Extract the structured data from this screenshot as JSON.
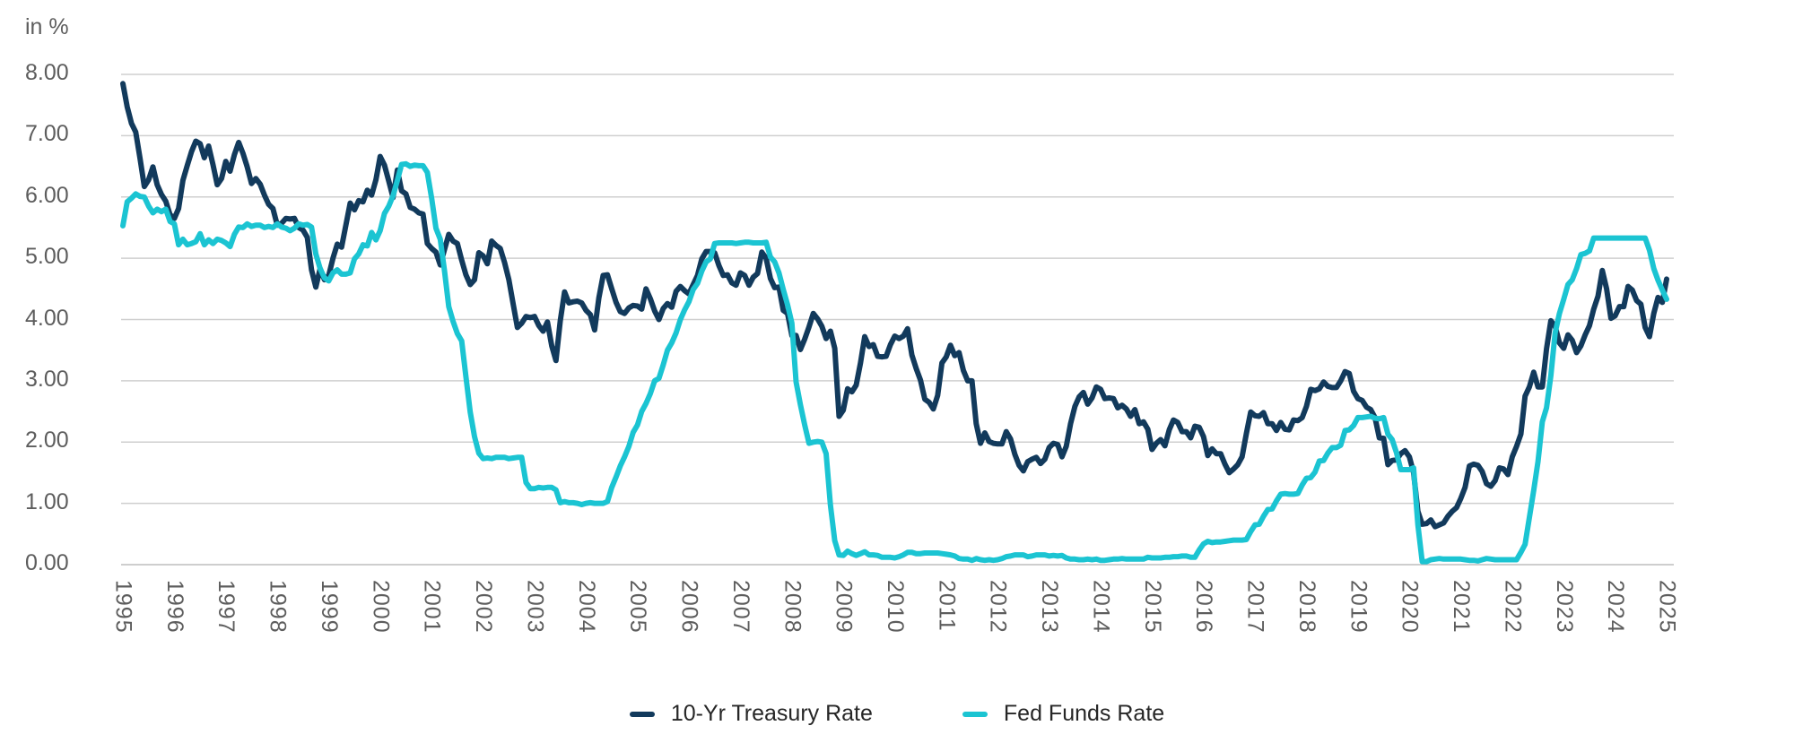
{
  "chart_data": {
    "type": "line",
    "title": "",
    "unit_label": "in %",
    "grid": "horizontal-only",
    "legend_position": "bottom-center",
    "ylim": [
      0,
      8
    ],
    "y_ticks": [
      "8.00",
      "7.00",
      "6.00",
      "5.00",
      "4.00",
      "3.00",
      "2.00",
      "1.00",
      "0.00"
    ],
    "x_ticks": [
      "1995",
      "1996",
      "1997",
      "1998",
      "1999",
      "2000",
      "2001",
      "2002",
      "2003",
      "2004",
      "2005",
      "2006",
      "2007",
      "2008",
      "2009",
      "2010",
      "2011",
      "2012",
      "2013",
      "2014",
      "2015",
      "2016",
      "2017",
      "2018",
      "2019",
      "2020",
      "2021",
      "2022",
      "2023",
      "2024",
      "2025"
    ],
    "x_start": "1995-01",
    "x_end": "2025-01",
    "frequency": "monthly",
    "axis_color": "#5d5d5d",
    "gridline_color": "#cfcfcf",
    "series": [
      {
        "name": "10-Yr Treasury Rate",
        "color": "#123A5C",
        "values": [
          7.85,
          7.47,
          7.2,
          7.06,
          6.63,
          6.17,
          6.28,
          6.49,
          6.2,
          6.04,
          5.93,
          5.71,
          5.65,
          5.81,
          6.27,
          6.51,
          6.74,
          6.91,
          6.87,
          6.64,
          6.83,
          6.53,
          6.2,
          6.3,
          6.58,
          6.42,
          6.69,
          6.89,
          6.71,
          6.49,
          6.22,
          6.3,
          6.21,
          6.03,
          5.88,
          5.81,
          5.54,
          5.57,
          5.65,
          5.64,
          5.65,
          5.5,
          5.46,
          5.34,
          4.81,
          4.53,
          4.83,
          4.65,
          4.72,
          5.0,
          5.23,
          5.18,
          5.54,
          5.9,
          5.79,
          5.94,
          5.92,
          6.11,
          6.03,
          6.28,
          6.66,
          6.52,
          6.26,
          5.99,
          6.44,
          6.1,
          6.05,
          5.83,
          5.8,
          5.74,
          5.72,
          5.24,
          5.16,
          5.1,
          4.89,
          5.14,
          5.39,
          5.28,
          5.24,
          4.97,
          4.73,
          4.57,
          4.65,
          5.09,
          5.04,
          4.91,
          5.28,
          5.21,
          5.16,
          4.93,
          4.65,
          4.26,
          3.87,
          3.94,
          4.05,
          4.03,
          4.05,
          3.9,
          3.81,
          3.96,
          3.57,
          3.33,
          3.98,
          4.45,
          4.27,
          4.29,
          4.3,
          4.27,
          4.15,
          4.08,
          3.83,
          4.35,
          4.72,
          4.73,
          4.5,
          4.28,
          4.13,
          4.1,
          4.19,
          4.23,
          4.22,
          4.17,
          4.5,
          4.34,
          4.14,
          4.0,
          4.18,
          4.26,
          4.2,
          4.46,
          4.54,
          4.47,
          4.42,
          4.57,
          4.72,
          4.99,
          5.11,
          5.11,
          5.09,
          4.88,
          4.72,
          4.73,
          4.6,
          4.56,
          4.76,
          4.72,
          4.56,
          4.69,
          4.75,
          5.1,
          5.0,
          4.67,
          4.52,
          4.53,
          4.15,
          4.1,
          3.74,
          3.74,
          3.51,
          3.68,
          3.88,
          4.1,
          4.01,
          3.89,
          3.69,
          3.81,
          3.53,
          2.42,
          2.52,
          2.87,
          2.82,
          2.93,
          3.29,
          3.72,
          3.56,
          3.59,
          3.4,
          3.39,
          3.4,
          3.59,
          3.73,
          3.69,
          3.73,
          3.85,
          3.42,
          3.2,
          3.01,
          2.7,
          2.65,
          2.54,
          2.76,
          3.29,
          3.39,
          3.58,
          3.41,
          3.46,
          3.17,
          3.0,
          3.0,
          2.3,
          1.98,
          2.15,
          2.01,
          1.98,
          1.97,
          1.97,
          2.17,
          2.05,
          1.8,
          1.62,
          1.53,
          1.68,
          1.72,
          1.75,
          1.65,
          1.72,
          1.91,
          1.98,
          1.96,
          1.76,
          1.93,
          2.3,
          2.58,
          2.74,
          2.81,
          2.62,
          2.72,
          2.9,
          2.86,
          2.71,
          2.72,
          2.71,
          2.56,
          2.6,
          2.54,
          2.42,
          2.53,
          2.3,
          2.33,
          2.21,
          1.88,
          1.98,
          2.04,
          1.94,
          2.2,
          2.36,
          2.32,
          2.17,
          2.17,
          2.07,
          2.26,
          2.24,
          2.09,
          1.78,
          1.89,
          1.81,
          1.81,
          1.64,
          1.5,
          1.56,
          1.63,
          1.76,
          2.14,
          2.49,
          2.43,
          2.42,
          2.48,
          2.3,
          2.3,
          2.19,
          2.32,
          2.21,
          2.2,
          2.36,
          2.35,
          2.4,
          2.58,
          2.86,
          2.84,
          2.87,
          2.98,
          2.91,
          2.89,
          2.89,
          3.0,
          3.15,
          3.12,
          2.83,
          2.71,
          2.68,
          2.57,
          2.53,
          2.4,
          2.07,
          2.06,
          1.63,
          1.7,
          1.71,
          1.81,
          1.86,
          1.76,
          1.5,
          0.87,
          0.66,
          0.67,
          0.73,
          0.62,
          0.65,
          0.68,
          0.79,
          0.87,
          0.93,
          1.08,
          1.26,
          1.61,
          1.64,
          1.62,
          1.52,
          1.32,
          1.28,
          1.37,
          1.58,
          1.56,
          1.47,
          1.76,
          1.93,
          2.13,
          2.75,
          2.9,
          3.14,
          2.9,
          2.9,
          3.52,
          3.98,
          3.89,
          3.62,
          3.53,
          3.75,
          3.66,
          3.46,
          3.57,
          3.75,
          3.9,
          4.17,
          4.38,
          4.8,
          4.5,
          4.02,
          4.06,
          4.21,
          4.21,
          4.54,
          4.48,
          4.31,
          4.25,
          3.87,
          3.72,
          4.1,
          4.36,
          4.28,
          4.66
        ]
      },
      {
        "name": "Fed Funds Rate",
        "color": "#1BC4D2",
        "values": [
          5.53,
          5.92,
          5.98,
          6.05,
          6.01,
          6.0,
          5.85,
          5.74,
          5.8,
          5.76,
          5.8,
          5.6,
          5.56,
          5.22,
          5.31,
          5.22,
          5.24,
          5.27,
          5.4,
          5.22,
          5.3,
          5.24,
          5.31,
          5.29,
          5.25,
          5.19,
          5.39,
          5.51,
          5.5,
          5.56,
          5.52,
          5.54,
          5.54,
          5.5,
          5.52,
          5.5,
          5.56,
          5.51,
          5.49,
          5.45,
          5.49,
          5.56,
          5.54,
          5.55,
          5.51,
          5.07,
          4.83,
          4.68,
          4.63,
          4.76,
          4.81,
          4.74,
          4.74,
          4.76,
          4.99,
          5.07,
          5.22,
          5.2,
          5.42,
          5.3,
          5.45,
          5.73,
          5.85,
          6.02,
          6.27,
          6.53,
          6.54,
          6.5,
          6.52,
          6.51,
          6.51,
          6.4,
          5.98,
          5.49,
          5.31,
          4.8,
          4.21,
          3.97,
          3.77,
          3.65,
          3.07,
          2.49,
          2.09,
          1.82,
          1.73,
          1.74,
          1.73,
          1.75,
          1.75,
          1.75,
          1.73,
          1.74,
          1.75,
          1.75,
          1.34,
          1.24,
          1.24,
          1.26,
          1.25,
          1.26,
          1.26,
          1.22,
          1.01,
          1.03,
          1.01,
          1.01,
          1.0,
          0.98,
          1.0,
          1.01,
          1.0,
          1.0,
          1.0,
          1.03,
          1.26,
          1.43,
          1.61,
          1.76,
          1.93,
          2.16,
          2.28,
          2.5,
          2.63,
          2.79,
          3.0,
          3.04,
          3.26,
          3.5,
          3.62,
          3.78,
          4.0,
          4.16,
          4.29,
          4.49,
          4.59,
          4.79,
          4.94,
          4.99,
          5.24,
          5.25,
          5.25,
          5.25,
          5.25,
          5.24,
          5.25,
          5.26,
          5.26,
          5.25,
          5.25,
          5.25,
          5.26,
          5.02,
          4.94,
          4.76,
          4.49,
          4.24,
          3.94,
          2.98,
          2.61,
          2.28,
          1.98,
          2.0,
          2.01,
          2.0,
          1.81,
          0.97,
          0.39,
          0.16,
          0.15,
          0.22,
          0.18,
          0.15,
          0.18,
          0.21,
          0.16,
          0.16,
          0.15,
          0.12,
          0.12,
          0.12,
          0.11,
          0.13,
          0.16,
          0.2,
          0.2,
          0.18,
          0.18,
          0.19,
          0.19,
          0.19,
          0.19,
          0.18,
          0.17,
          0.16,
          0.14,
          0.1,
          0.09,
          0.09,
          0.07,
          0.1,
          0.08,
          0.07,
          0.08,
          0.07,
          0.08,
          0.1,
          0.13,
          0.14,
          0.16,
          0.16,
          0.16,
          0.13,
          0.14,
          0.16,
          0.16,
          0.16,
          0.14,
          0.15,
          0.14,
          0.15,
          0.11,
          0.09,
          0.09,
          0.08,
          0.08,
          0.09,
          0.08,
          0.09,
          0.07,
          0.07,
          0.08,
          0.09,
          0.09,
          0.1,
          0.09,
          0.09,
          0.09,
          0.09,
          0.09,
          0.12,
          0.11,
          0.11,
          0.11,
          0.12,
          0.12,
          0.13,
          0.13,
          0.14,
          0.14,
          0.12,
          0.12,
          0.24,
          0.34,
          0.38,
          0.36,
          0.37,
          0.37,
          0.38,
          0.39,
          0.4,
          0.4,
          0.4,
          0.41,
          0.54,
          0.65,
          0.66,
          0.79,
          0.9,
          0.91,
          1.04,
          1.15,
          1.16,
          1.15,
          1.15,
          1.16,
          1.3,
          1.41,
          1.42,
          1.51,
          1.69,
          1.7,
          1.82,
          1.91,
          1.91,
          1.95,
          2.19,
          2.2,
          2.27,
          2.4,
          2.4,
          2.41,
          2.42,
          2.39,
          2.38,
          2.4,
          2.13,
          2.04,
          1.83,
          1.55,
          1.55,
          1.55,
          1.58,
          0.65,
          0.05,
          0.05,
          0.08,
          0.09,
          0.1,
          0.09,
          0.09,
          0.09,
          0.09,
          0.09,
          0.08,
          0.07,
          0.07,
          0.06,
          0.08,
          0.1,
          0.09,
          0.08,
          0.08,
          0.08,
          0.08,
          0.08,
          0.08,
          0.2,
          0.33,
          0.77,
          1.21,
          1.68,
          2.33,
          2.56,
          3.08,
          3.78,
          4.1,
          4.33,
          4.57,
          4.65,
          4.83,
          5.06,
          5.08,
          5.12,
          5.33,
          5.33,
          5.33,
          5.33,
          5.33,
          5.33,
          5.33,
          5.33,
          5.33,
          5.33,
          5.33,
          5.33,
          5.33,
          5.13,
          4.83,
          4.64,
          4.48,
          4.33
        ]
      }
    ]
  }
}
